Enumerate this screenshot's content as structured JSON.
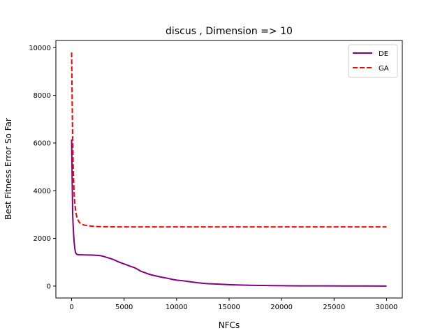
{
  "chart_data": {
    "type": "line",
    "title": "discus , Dimension => 10",
    "xlabel": "NFCs",
    "ylabel": "Best Fitness Error So Far",
    "xlim": [
      -1500,
      31500
    ],
    "ylim": [
      -500,
      10300
    ],
    "xticks": [
      0,
      5000,
      10000,
      15000,
      20000,
      25000,
      30000
    ],
    "yticks": [
      0,
      2000,
      4000,
      6000,
      8000,
      10000
    ],
    "grid": false,
    "legend_position": "top-right",
    "series": [
      {
        "name": "DE",
        "color": "#800080",
        "style": "solid",
        "x": [
          0,
          50,
          100,
          150,
          200,
          250,
          300,
          350,
          400,
          500,
          600,
          800,
          1000,
          1500,
          2000,
          2400,
          2700,
          3000,
          3300,
          3600,
          4000,
          4300,
          4600,
          5000,
          5300,
          5600,
          6000,
          6300,
          6600,
          7000,
          7300,
          7600,
          8000,
          8300,
          8600,
          9000,
          9300,
          9600,
          10000,
          10500,
          11000,
          11500,
          12000,
          12500,
          13000,
          14000,
          15000,
          16000,
          17000,
          18000,
          19000,
          20000,
          22000,
          24000,
          26000,
          28000,
          30000
        ],
        "y": [
          6150,
          4500,
          3000,
          2500,
          2100,
          1800,
          1600,
          1450,
          1380,
          1330,
          1320,
          1310,
          1310,
          1305,
          1300,
          1290,
          1280,
          1250,
          1210,
          1170,
          1110,
          1050,
          990,
          930,
          880,
          830,
          770,
          700,
          620,
          560,
          510,
          470,
          430,
          400,
          370,
          340,
          310,
          280,
          250,
          230,
          200,
          170,
          140,
          120,
          100,
          80,
          60,
          45,
          35,
          25,
          20,
          15,
          10,
          7,
          5,
          3,
          2
        ]
      },
      {
        "name": "GA",
        "color": "#ff0000",
        "style": "dashed",
        "x": [
          0,
          50,
          100,
          150,
          200,
          250,
          300,
          400,
          500,
          600,
          700,
          800,
          1000,
          1200,
          1500,
          2000,
          2500,
          3000,
          4000,
          5000,
          10000,
          15000,
          20000,
          25000,
          30000
        ],
        "y": [
          9800,
          7800,
          6200,
          5000,
          4300,
          3800,
          3500,
          3100,
          2900,
          2780,
          2700,
          2640,
          2590,
          2560,
          2535,
          2510,
          2495,
          2490,
          2485,
          2480,
          2480,
          2480,
          2480,
          2480,
          2480
        ]
      }
    ]
  }
}
